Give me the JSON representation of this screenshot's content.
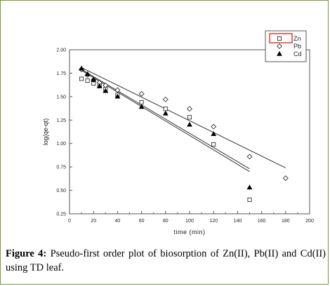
{
  "chart_data": {
    "type": "scatter",
    "xlabel": "time (min)",
    "ylabel": "log(qe-qt)",
    "xlim": [
      0,
      200
    ],
    "ylim": [
      0.25,
      2.0
    ],
    "xticks": [
      0,
      10,
      20,
      30,
      40,
      50,
      60,
      70,
      80,
      90,
      100,
      110,
      120,
      130,
      140,
      150,
      160,
      170,
      180,
      190,
      200
    ],
    "xtick_labels": [
      "0",
      "20",
      "40",
      "60",
      "80",
      "100",
      "120",
      "140",
      "160",
      "180",
      "200"
    ],
    "yticks": [
      0.25,
      0.5,
      0.75,
      1.0,
      1.25,
      1.5,
      1.75,
      2.0
    ],
    "ytick_labels": [
      "0.25",
      "0.50",
      "0.75",
      "1.00",
      "1.25",
      "1.50",
      "1.75",
      "2.00"
    ],
    "legend_position": "top-right",
    "series": [
      {
        "name": "Zn",
        "marker": "square",
        "color": "#333333",
        "x": [
          10,
          15,
          20,
          25,
          30,
          40,
          60,
          80,
          100,
          120,
          150
        ],
        "y": [
          1.69,
          1.67,
          1.64,
          1.62,
          1.58,
          1.52,
          1.44,
          1.37,
          1.28,
          0.99,
          0.4
        ],
        "fit": {
          "x": [
            10,
            150
          ],
          "y": [
            1.78,
            0.7
          ]
        }
      },
      {
        "name": "Pb",
        "marker": "diamond",
        "color": "#333333",
        "x": [
          10,
          15,
          20,
          25,
          30,
          40,
          60,
          80,
          100,
          120,
          150,
          180
        ],
        "y": [
          1.79,
          1.73,
          1.68,
          1.65,
          1.62,
          1.57,
          1.53,
          1.47,
          1.37,
          1.18,
          0.86,
          0.63
        ],
        "fit": {
          "x": [
            10,
            180
          ],
          "y": [
            1.81,
            0.74
          ]
        }
      },
      {
        "name": "Cd",
        "marker": "triangle",
        "color": "#000000",
        "x": [
          10,
          15,
          20,
          25,
          30,
          40,
          60,
          80,
          100,
          120,
          150
        ],
        "y": [
          1.8,
          1.74,
          1.68,
          1.61,
          1.56,
          1.5,
          1.39,
          1.32,
          1.2,
          1.1,
          0.53
        ],
        "fit": {
          "x": [
            10,
            150
          ],
          "y": [
            1.79,
            0.73
          ]
        }
      }
    ]
  },
  "caption": {
    "label": "Figure 4:",
    "text": " Pseudo-first order plot of biosorption of Zn(II), Pb(II) and Cd(II) using TD leaf."
  }
}
